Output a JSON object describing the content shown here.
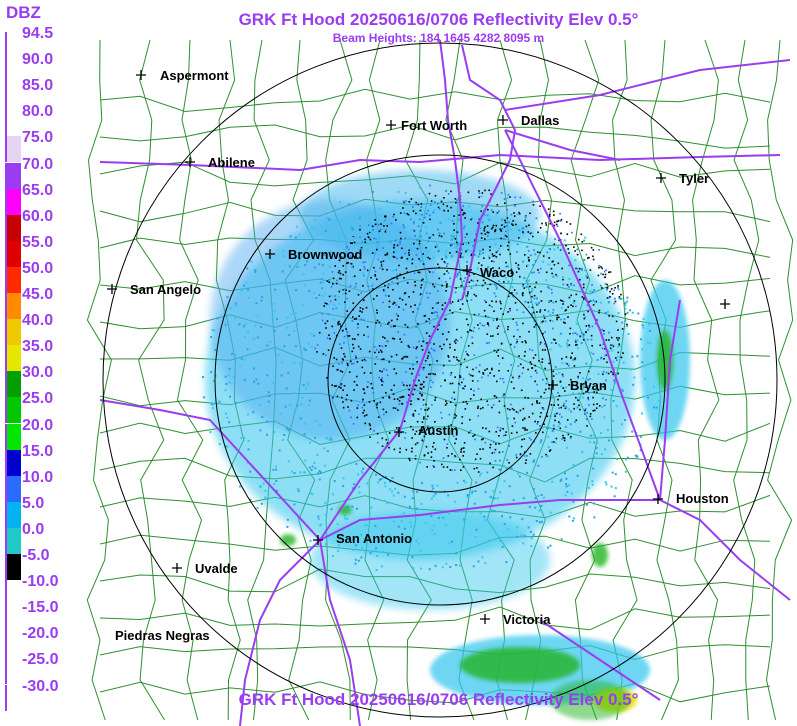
{
  "title": {
    "top": "GRK Ft Hood 20250616/0706 Reflectivity Elev 0.5°",
    "subtitle": "Beam Heights: 184 1645 4282 8095 m",
    "bottom": "GRK Ft Hood 20250616/0706 Reflectivity Elev 0.5°"
  },
  "legend": {
    "unit": "DBZ",
    "items": [
      {
        "label": "94.5",
        "color": "#ffffff"
      },
      {
        "label": "90.0",
        "color": "#ffffff"
      },
      {
        "label": "85.0",
        "color": "#ffffff"
      },
      {
        "label": "80.0",
        "color": "#ffffff"
      },
      {
        "label": "75.0",
        "color": "#e6d4f5"
      },
      {
        "label": "70.0",
        "color": "#9a3cf0"
      },
      {
        "label": "65.0",
        "color": "#ff00ff"
      },
      {
        "label": "60.0",
        "color": "#c80000"
      },
      {
        "label": "55.0",
        "color": "#e00000"
      },
      {
        "label": "50.0",
        "color": "#ff2a00"
      },
      {
        "label": "45.0",
        "color": "#ff8c00"
      },
      {
        "label": "40.0",
        "color": "#f0c800"
      },
      {
        "label": "35.0",
        "color": "#e6e600"
      },
      {
        "label": "30.0",
        "color": "#00a000"
      },
      {
        "label": "25.0",
        "color": "#00c800"
      },
      {
        "label": "20.0",
        "color": "#00e600"
      },
      {
        "label": "15.0",
        "color": "#0000d0"
      },
      {
        "label": "10.0",
        "color": "#2a6cff"
      },
      {
        "label": "5.0",
        "color": "#00b4f0"
      },
      {
        "label": "0.0",
        "color": "#20c8c8"
      },
      {
        "label": "-5.0",
        "color": "#000000"
      },
      {
        "label": "-10.0",
        "color": "#ffffff"
      },
      {
        "label": "-15.0",
        "color": "#ffffff"
      },
      {
        "label": "-20.0",
        "color": "#ffffff"
      },
      {
        "label": "-25.0",
        "color": "#ffffff"
      },
      {
        "label": "-30.0",
        "color": "#ffffff"
      }
    ]
  },
  "cities": [
    {
      "name": "Aspermont"
    },
    {
      "name": "Fort Worth"
    },
    {
      "name": "Dallas"
    },
    {
      "name": "Abilene"
    },
    {
      "name": "Tyler"
    },
    {
      "name": "Brownwood"
    },
    {
      "name": "Waco"
    },
    {
      "name": "San Angelo"
    },
    {
      "name": "Bryan"
    },
    {
      "name": "Austin"
    },
    {
      "name": "Houston"
    },
    {
      "name": "San Antonio"
    },
    {
      "name": "Uvalde"
    },
    {
      "name": "Victoria"
    },
    {
      "name": "Piedras Negras"
    }
  ],
  "colors": {
    "title": "#9a3cf0",
    "county_lines": "#2f8f2f",
    "highways": "#9a3cf0",
    "range_rings": "#000000",
    "echo_light": "#33c6ee",
    "echo_blue": "#4a8ef0",
    "echo_green": "#22b422",
    "echo_yellow": "#e6e600"
  }
}
